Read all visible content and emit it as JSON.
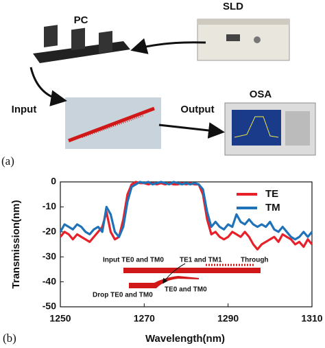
{
  "setup": {
    "labels": {
      "pc": "PC",
      "sld": "SLD",
      "input": "Input",
      "output": "Output",
      "osa": "OSA"
    },
    "panel_label": "(a)"
  },
  "chart_data": {
    "type": "line",
    "panel_label": "(b)",
    "x_label": "Wavelength(nm)",
    "y_label": "Transmission(nm)",
    "x": [
      1250,
      1251,
      1252,
      1253,
      1254,
      1255,
      1256,
      1257,
      1258,
      1259,
      1260,
      1261,
      1262,
      1263,
      1264,
      1265,
      1266,
      1267,
      1268,
      1269,
      1270,
      1271,
      1272,
      1273,
      1274,
      1275,
      1276,
      1277,
      1278,
      1279,
      1280,
      1281,
      1282,
      1283,
      1284,
      1285,
      1286,
      1287,
      1288,
      1289,
      1290,
      1291,
      1292,
      1293,
      1294,
      1295,
      1296,
      1297,
      1298,
      1299,
      1300,
      1301,
      1302,
      1303,
      1304,
      1305,
      1306,
      1307,
      1308,
      1309,
      1310
    ],
    "series": [
      {
        "name": "TE",
        "color": "#e8202a",
        "values": [
          -22,
          -20,
          -21,
          -23,
          -21,
          -22,
          -23,
          -24,
          -22,
          -20,
          -18,
          -12,
          -20,
          -23,
          -22,
          -15,
          -5,
          -1,
          0,
          -0.5,
          -0.5,
          -1,
          -0.5,
          -1,
          -0.5,
          -1,
          -0.5,
          -1,
          -1,
          -0.5,
          -1,
          -0.5,
          -1,
          -1,
          -5,
          -15,
          -21,
          -20,
          -22,
          -23,
          -22,
          -20,
          -21,
          -22,
          -20,
          -22,
          -25,
          -27,
          -25,
          -24,
          -23,
          -22,
          -24,
          -21,
          -22,
          -23,
          -25,
          -24,
          -26,
          -23,
          -25
        ]
      },
      {
        "name": "TM",
        "color": "#1f72b8",
        "values": [
          -20,
          -17,
          -18,
          -19,
          -17,
          -18,
          -20,
          -21,
          -19,
          -18,
          -20,
          -10,
          -13,
          -20,
          -22,
          -18,
          -8,
          -2,
          -1,
          0,
          -0.5,
          0,
          -1,
          -0.5,
          0,
          -0.5,
          -1,
          0,
          -0.5,
          -1,
          -0.5,
          -1,
          -0.5,
          -1,
          -3,
          -12,
          -18,
          -16,
          -18,
          -19,
          -17,
          -18,
          -13,
          -16,
          -17,
          -15,
          -17,
          -18,
          -17,
          -18,
          -16,
          -19,
          -20,
          -18,
          -20,
          -22,
          -23,
          -22,
          -20,
          -22,
          -20
        ]
      }
    ],
    "xlim": [
      1250,
      1310
    ],
    "xticks": [
      1250,
      1270,
      1290,
      1310
    ],
    "ylim": [
      -50,
      0
    ],
    "yticks": [
      0,
      -10,
      -20,
      -30,
      -40,
      -50
    ],
    "legend": "upper right",
    "annotations": [
      "Input TE0 and TM0",
      "TE1 and TM1",
      "Through",
      "Drop TE0 and TM0",
      "TE0 and TM0"
    ]
  }
}
